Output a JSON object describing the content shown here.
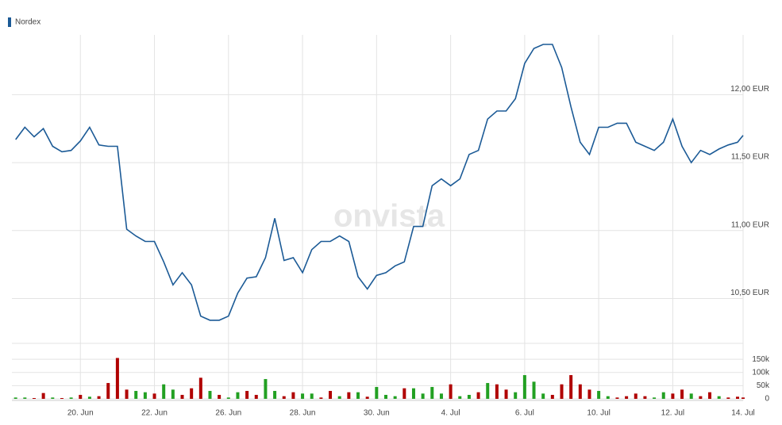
{
  "chart_data": [
    {
      "type": "line",
      "watermark": "onvista",
      "series": [
        {
          "name": "Nordex",
          "color": "#1b5a96",
          "values": [
            11.67,
            11.76,
            11.69,
            11.75,
            11.62,
            11.58,
            11.59,
            11.66,
            11.76,
            11.63,
            11.62,
            11.62,
            11.01,
            10.96,
            10.92,
            10.92,
            10.77,
            10.6,
            10.69,
            10.6,
            10.37,
            10.34,
            10.34,
            10.37,
            10.54,
            10.65,
            10.66,
            10.8,
            11.09,
            10.78,
            10.8,
            10.69,
            10.86,
            10.92,
            10.92,
            10.96,
            10.92,
            10.66,
            10.57,
            10.67,
            10.69,
            10.74,
            10.77,
            11.03,
            11.03,
            11.33,
            11.38,
            11.33,
            11.38,
            11.56,
            11.59,
            11.82,
            11.88,
            11.88,
            11.97,
            12.23,
            12.34,
            12.37,
            12.37,
            12.2,
            11.91,
            11.65,
            11.56,
            11.76,
            11.76,
            11.79,
            11.79,
            11.65,
            11.62,
            11.59,
            11.65,
            11.82,
            11.62,
            11.5,
            11.59,
            11.56,
            11.6,
            11.63,
            11.65,
            11.7
          ]
        }
      ],
      "x": [
        -1.75,
        -1.5,
        -1.25,
        -1,
        -0.75,
        -0.5,
        -0.25,
        0,
        0.25,
        0.5,
        0.75,
        1,
        1.25,
        1.5,
        1.75,
        2,
        2.25,
        2.5,
        2.75,
        3,
        3.25,
        3.5,
        3.75,
        4,
        4.25,
        4.5,
        4.75,
        5,
        5.25,
        5.5,
        5.75,
        6,
        6.25,
        6.5,
        6.75,
        7,
        7.25,
        7.5,
        7.75,
        8,
        8.25,
        8.5,
        8.75,
        9,
        9.25,
        9.5,
        9.75,
        10,
        10.25,
        10.5,
        10.75,
        11,
        11.25,
        11.5,
        11.75,
        12,
        12.25,
        12.5,
        12.75,
        13,
        13.25,
        13.5,
        13.75,
        14,
        14.25,
        14.5,
        14.75,
        15,
        15.25,
        15.5,
        15.75,
        16,
        16.25,
        16.5,
        16.75,
        17,
        17.25,
        17.5,
        17.75,
        17.9
      ],
      "xlim": [
        -1.85,
        17.9
      ],
      "ylim": [
        10.17,
        12.44
      ],
      "yticks": [
        {
          "value": 10.5,
          "label": "10,50 EUR"
        },
        {
          "value": 11,
          "label": "11,00 EUR"
        },
        {
          "value": 11.5,
          "label": "11,50 EUR"
        },
        {
          "value": 12,
          "label": "12,00 EUR"
        }
      ],
      "grid": true
    },
    {
      "type": "bar",
      "x": [
        -1.75,
        -1.5,
        -1.25,
        -1,
        -0.75,
        -0.5,
        -0.25,
        0,
        0.25,
        0.5,
        0.75,
        1,
        1.25,
        1.5,
        1.75,
        2,
        2.25,
        2.5,
        2.75,
        3,
        3.25,
        3.5,
        3.75,
        4,
        4.25,
        4.5,
        4.75,
        5,
        5.25,
        5.5,
        5.75,
        6,
        6.25,
        6.5,
        6.75,
        7,
        7.25,
        7.5,
        7.75,
        8,
        8.25,
        8.5,
        8.75,
        9,
        9.25,
        9.5,
        9.75,
        10,
        10.25,
        10.5,
        10.75,
        11,
        11.25,
        11.5,
        11.75,
        12,
        12.25,
        12.5,
        12.75,
        13,
        13.25,
        13.5,
        13.75,
        14,
        14.25,
        14.5,
        14.75,
        15,
        15.25,
        15.5,
        15.75,
        16,
        16.25,
        16.5,
        16.75,
        17,
        17.25,
        17.5,
        17.75,
        17.9
      ],
      "values": [
        5000,
        5000,
        3000,
        22000,
        5000,
        3000,
        5000,
        15000,
        8000,
        10000,
        60000,
        155000,
        35000,
        30000,
        25000,
        20000,
        55000,
        35000,
        15000,
        40000,
        80000,
        30000,
        15000,
        5000,
        25000,
        30000,
        15000,
        75000,
        30000,
        10000,
        25000,
        20000,
        20000,
        5000,
        30000,
        10000,
        25000,
        25000,
        8000,
        45000,
        15000,
        10000,
        40000,
        40000,
        20000,
        45000,
        20000,
        55000,
        10000,
        15000,
        25000,
        60000,
        55000,
        35000,
        25000,
        90000,
        65000,
        20000,
        15000,
        55000,
        90000,
        55000,
        35000,
        30000,
        10000,
        5000,
        10000,
        20000,
        10000,
        5000,
        25000,
        20000,
        35000,
        20000,
        10000,
        25000,
        10000,
        5000,
        8000,
        5000
      ],
      "colors": [
        "#22a022",
        "#22a022",
        "#b00000",
        "#b00000",
        "#22a022",
        "#b00000",
        "#22a022",
        "#b00000",
        "#22a022",
        "#b00000",
        "#b00000",
        "#b00000",
        "#b00000",
        "#22a022",
        "#22a022",
        "#b00000",
        "#22a022",
        "#22a022",
        "#b00000",
        "#b00000",
        "#b00000",
        "#22a022",
        "#b00000",
        "#22a022",
        "#22a022",
        "#b00000",
        "#b00000",
        "#22a022",
        "#22a022",
        "#b00000",
        "#b00000",
        "#22a022",
        "#22a022",
        "#b00000",
        "#b00000",
        "#22a022",
        "#b00000",
        "#22a022",
        "#b00000",
        "#22a022",
        "#22a022",
        "#22a022",
        "#b00000",
        "#22a022",
        "#22a022",
        "#22a022",
        "#22a022",
        "#b00000",
        "#22a022",
        "#22a022",
        "#b00000",
        "#22a022",
        "#b00000",
        "#b00000",
        "#22a022",
        "#22a022",
        "#22a022",
        "#22a022",
        "#b00000",
        "#b00000",
        "#b00000",
        "#b00000",
        "#b00000",
        "#22a022",
        "#22a022",
        "#b00000",
        "#b00000",
        "#b00000",
        "#b00000",
        "#22a022",
        "#22a022",
        "#b00000",
        "#b00000",
        "#22a022",
        "#b00000",
        "#b00000",
        "#22a022",
        "#b00000",
        "#b00000",
        "#b00000"
      ],
      "xlim": [
        -1.85,
        17.9
      ],
      "ylim": [
        0,
        200000
      ],
      "yticks": [
        0,
        {
          "value": 50000,
          "label": "50k"
        },
        {
          "value": 100000,
          "label": "100k"
        },
        {
          "value": 150000,
          "label": "150k"
        }
      ],
      "xticks": [
        {
          "value": 0,
          "label": "20. Jun"
        },
        {
          "value": 2,
          "label": "22. Jun"
        },
        {
          "value": 4,
          "label": "26. Jun"
        },
        {
          "value": 6,
          "label": "28. Jun"
        },
        {
          "value": 8,
          "label": "30. Jun"
        },
        {
          "value": 10,
          "label": "4. Jul"
        },
        {
          "value": 12,
          "label": "6. Jul"
        },
        {
          "value": 14,
          "label": "10. Jul"
        },
        {
          "value": 16,
          "label": "12. Jul"
        },
        {
          "value": 17.9,
          "label": "14. Jul"
        }
      ],
      "grid": true
    }
  ]
}
